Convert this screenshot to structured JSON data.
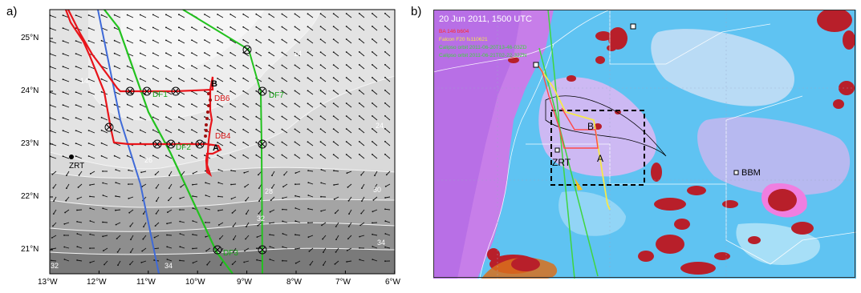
{
  "panel_a": {
    "letter": "a)",
    "x_ticks": [
      "13°W",
      "12°W",
      "11°W",
      "10°W",
      "9°W",
      "8°W",
      "7°W",
      "6°W"
    ],
    "y_ticks": [
      "21°N",
      "22°N",
      "23°N",
      "24°N",
      "25°N"
    ],
    "labels": {
      "B": "B",
      "A": "A",
      "DB6": "DB6",
      "DB4": "DB4",
      "DF1": "DF1",
      "DF2": "DF2",
      "DF3": "DF3",
      "DF7": "DF7",
      "ZRT": "ZRT"
    },
    "contour_labels": [
      "14",
      "14",
      "24",
      "26",
      "28",
      "30",
      "32",
      "32",
      "34",
      "34",
      "30",
      "28",
      "26",
      "24",
      "22",
      "20",
      "18",
      "16",
      "36",
      "38"
    ],
    "colors": {
      "red_track": "#e8141a",
      "blue_track": "#3f6ad8",
      "green_track": "#22c21e"
    }
  },
  "panel_b": {
    "letter": "b)",
    "title": "20 Jun 2011, 1500 UTC",
    "legend": [
      {
        "text": "BA 146 b604",
        "color": "#ff2b2b"
      },
      {
        "text": "Falcon F20 fs110621",
        "color": "#f6e94a"
      },
      {
        "text": "Calipso orbit 2011-06-20T13-46-03ZD",
        "color": "#3fd53f"
      },
      {
        "text": "Calipso orbit 2011-06-21T02-22-32ZN",
        "color": "#3fd53f"
      }
    ],
    "labels": {
      "B": "B",
      "A": "A",
      "ZRT": "ZRT",
      "BBM": "BBM"
    }
  }
}
